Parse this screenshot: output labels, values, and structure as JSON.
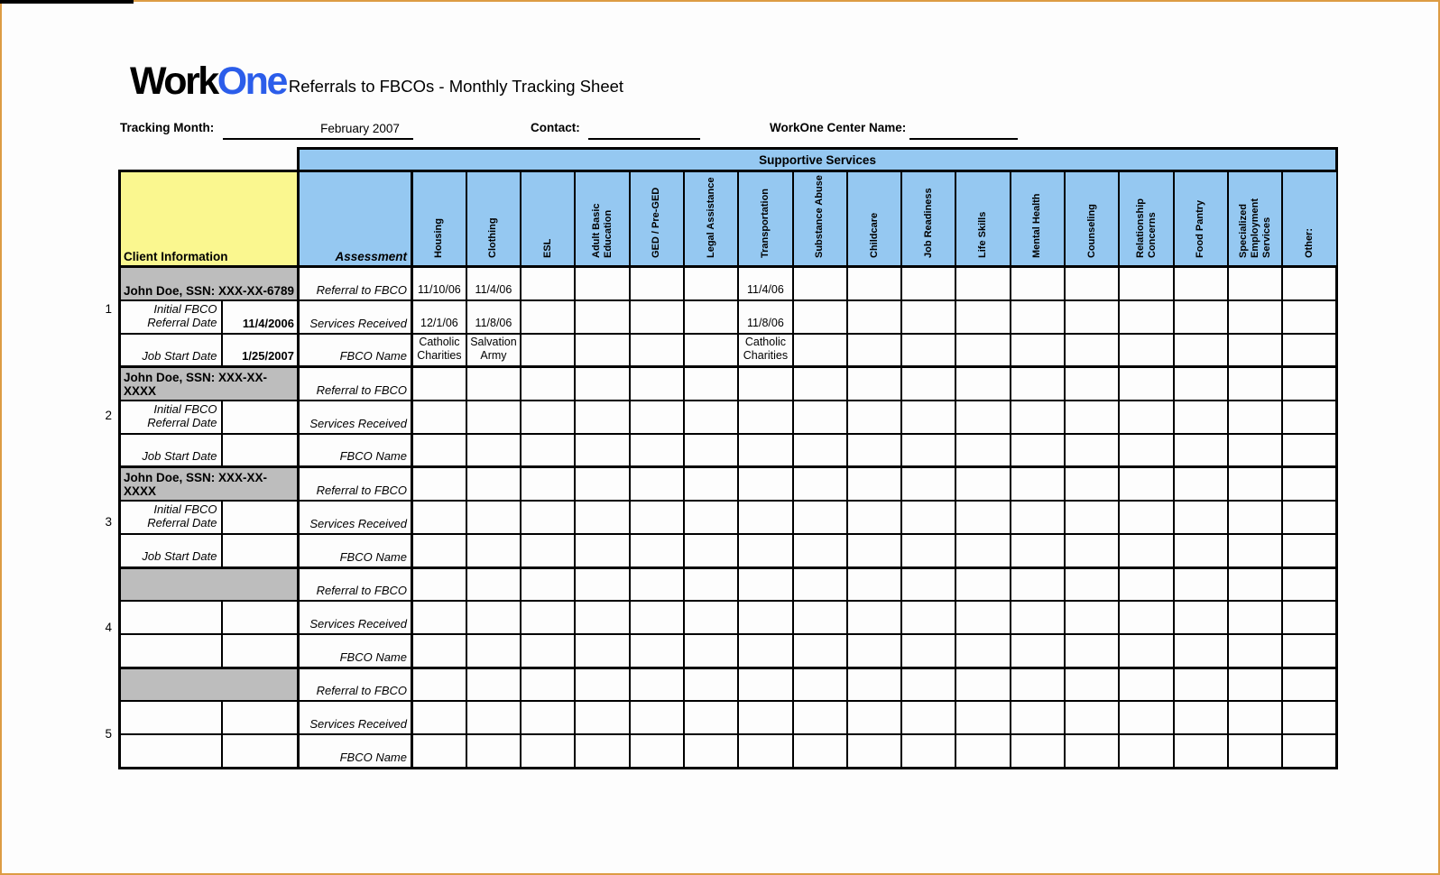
{
  "page": {
    "logo_work": "Work",
    "logo_one": "One",
    "title": "Referrals to FBCOs - Monthly Tracking Sheet",
    "fields": {
      "tracking_month_label": "Tracking Month:",
      "tracking_month_value": "February 2007",
      "contact_label": "Contact:",
      "contact_value": "",
      "center_name_label": "WorkOne Center Name:",
      "center_name_value": ""
    },
    "colors": {
      "banner_blue": "#95c8f1",
      "header_yellow": "#faf78f",
      "client_row_gray": "#bdbdbd",
      "logo_blue": "#2b5dea",
      "page_border_orange": "#dd9c44"
    }
  },
  "table": {
    "banner": "Supportive Services",
    "client_info_header": "Client Information",
    "assessment_header": "Assessment",
    "service_columns": [
      "Housing",
      "Clothing",
      "ESL",
      "Adult Basic Education",
      "GED / Pre-GED",
      "Legal Assistance",
      "Transportation",
      "Substance Abuse",
      "Childcare",
      "Job Readiness",
      "Life Skills",
      "Mental Health",
      "Counseling",
      "Relationship Concerns",
      "Food Pantry",
      "Specialized Employment Services",
      "Other:"
    ],
    "row_labels": {
      "referral": "Referral to FBCO",
      "services": "Services Received",
      "fbco": "FBCO Name",
      "initial_referral": "Initial FBCO Referral Date",
      "job_start": "Job Start Date"
    },
    "groups": [
      {
        "num": "1",
        "client_name": "John Doe, SSN: XXX-XX-6789",
        "show_field_labels": true,
        "initial_referral_date": "11/4/2006",
        "job_start_date": "1/25/2007",
        "referral_to_fbco": [
          "11/10/06",
          "11/4/06",
          "",
          "",
          "",
          "",
          "11/4/06",
          "",
          "",
          "",
          "",
          "",
          "",
          "",
          "",
          "",
          ""
        ],
        "services_received": [
          "12/1/06",
          "11/8/06",
          "",
          "",
          "",
          "",
          "11/8/06",
          "",
          "",
          "",
          "",
          "",
          "",
          "",
          "",
          "",
          ""
        ],
        "fbco_name": [
          "Catholic Charities",
          "Salvation Army",
          "",
          "",
          "",
          "",
          "Catholic Charities",
          "",
          "",
          "",
          "",
          "",
          "",
          "",
          "",
          "",
          ""
        ]
      },
      {
        "num": "2",
        "client_name": "John Doe, SSN: XXX-XX-XXXX",
        "show_field_labels": true,
        "initial_referral_date": "",
        "job_start_date": ""
      },
      {
        "num": "3",
        "client_name": "John Doe, SSN: XXX-XX-XXXX",
        "show_field_labels": true,
        "initial_referral_date": "",
        "job_start_date": ""
      },
      {
        "num": "4",
        "client_name": "",
        "show_field_labels": false,
        "initial_referral_date": "",
        "job_start_date": ""
      },
      {
        "num": "5",
        "client_name": "",
        "show_field_labels": false,
        "initial_referral_date": "",
        "job_start_date": ""
      }
    ]
  }
}
